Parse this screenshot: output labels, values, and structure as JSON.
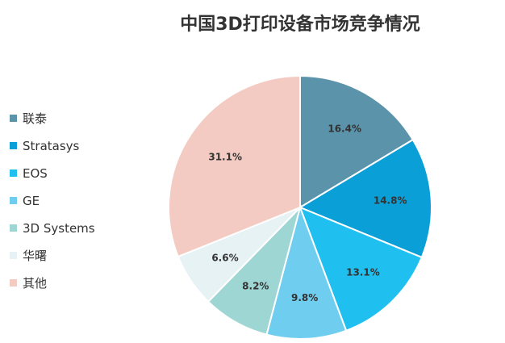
{
  "chart_data": {
    "type": "pie",
    "title": "中国3D打印设备市场竞争情况",
    "categories": [
      "联泰",
      "Stratasys",
      "EOS",
      "GE",
      "3D Systems",
      "华曙",
      "其他"
    ],
    "values": [
      16.4,
      14.8,
      13.1,
      9.8,
      8.2,
      6.6,
      31.1
    ],
    "data_labels": [
      "16.4%",
      "14.8%",
      "13.1%",
      "9.8%",
      "8.2%",
      "6.6%",
      "31.1%"
    ],
    "colors": [
      "#5b93aa",
      "#0a9fd6",
      "#1fbff0",
      "#6fcdf0",
      "#9dd6d2",
      "#e6f2f4",
      "#f4cbc2"
    ],
    "legend_position": "left",
    "start_angle": "12 o'clock",
    "direction": "clockwise"
  }
}
